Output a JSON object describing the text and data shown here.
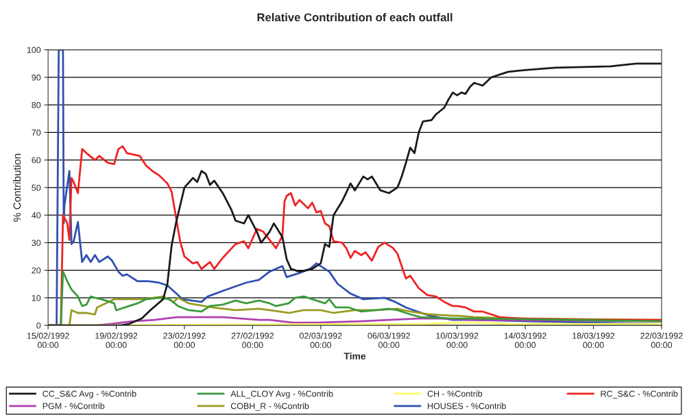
{
  "chart_data": {
    "type": "line",
    "title": "Relative Contribution of each outfall",
    "xlabel": "Time",
    "ylabel": "% Contribution",
    "xlim": [
      "1992-02-15T00:00",
      "1992-03-22T00:00"
    ],
    "xticks": [
      {
        "value": "1992-02-15T00:00",
        "label": "15/02/1992\n00:00"
      },
      {
        "value": "1992-02-19T00:00",
        "label": "19/02/1992\n00:00"
      },
      {
        "value": "1992-02-23T00:00",
        "label": "23/02/1992\n00:00"
      },
      {
        "value": "1992-02-27T00:00",
        "label": "27/02/1992\n00:00"
      },
      {
        "value": "1992-03-02T00:00",
        "label": "02/03/1992\n00:00"
      },
      {
        "value": "1992-03-06T00:00",
        "label": "06/03/1992\n00:00"
      },
      {
        "value": "1992-03-10T00:00",
        "label": "10/03/1992\n00:00"
      },
      {
        "value": "1992-03-14T00:00",
        "label": "14/03/1992\n00:00"
      },
      {
        "value": "1992-03-18T00:00",
        "label": "18/03/1992\n00:00"
      },
      {
        "value": "1992-03-22T00:00",
        "label": "22/03/1992\n00:00"
      }
    ],
    "ylim": [
      0,
      100
    ],
    "yticks": [
      0,
      10,
      20,
      30,
      40,
      50,
      60,
      70,
      80,
      90,
      100
    ],
    "grid": "y",
    "legend": "bottom",
    "marker": "none",
    "line_style": "solid",
    "series": [
      {
        "name": "CC_S&C Avg - %Contrib",
        "color": "#1a1a1a",
        "x": [
          "1992-02-15T00:00",
          "1992-02-19T06:00",
          "1992-02-19T18:00",
          "1992-02-20T12:00",
          "1992-02-21T00:00",
          "1992-02-21T18:00",
          "1992-02-22T00:00",
          "1992-02-22T06:00",
          "1992-02-22T12:00",
          "1992-02-23T00:00",
          "1992-02-23T12:00",
          "1992-02-23T18:00",
          "1992-02-24T00:00",
          "1992-02-24T06:00",
          "1992-02-24T12:00",
          "1992-02-24T18:00",
          "1992-02-25T06:00",
          "1992-02-25T18:00",
          "1992-02-26T00:00",
          "1992-02-26T12:00",
          "1992-02-26T18:00",
          "1992-02-27T06:00",
          "1992-02-27T12:00",
          "1992-02-28T00:00",
          "1992-02-28T06:00",
          "1992-02-28T18:00",
          "1992-02-29T00:00",
          "1992-02-29T06:00",
          "1992-02-29T18:00",
          "1992-03-01T12:00",
          "1992-03-02T00:00",
          "1992-03-02T06:00",
          "1992-03-02T12:00",
          "1992-03-02T18:00",
          "1992-03-03T06:00",
          "1992-03-03T18:00",
          "1992-03-04T00:00",
          "1992-03-04T06:00",
          "1992-03-04T12:00",
          "1992-03-04T18:00",
          "1992-03-05T00:00",
          "1992-03-05T12:00",
          "1992-03-06T00:00",
          "1992-03-06T12:00",
          "1992-03-06T18:00",
          "1992-03-07T00:00",
          "1992-03-07T06:00",
          "1992-03-07T12:00",
          "1992-03-07T18:00",
          "1992-03-08T00:00",
          "1992-03-08T12:00",
          "1992-03-08T18:00",
          "1992-03-09T06:00",
          "1992-03-09T12:00",
          "1992-03-09T18:00",
          "1992-03-10T00:00",
          "1992-03-10T06:00",
          "1992-03-10T12:00",
          "1992-03-10T18:00",
          "1992-03-11T00:00",
          "1992-03-11T12:00",
          "1992-03-12T00:00",
          "1992-03-12T12:00",
          "1992-03-13T00:00",
          "1992-03-13T18:00",
          "1992-03-15T18:00",
          "1992-03-19T00:00",
          "1992-03-20T12:00",
          "1992-03-22T00:00"
        ],
        "values": [
          0,
          0,
          0.5,
          2.5,
          5.5,
          9.5,
          15,
          29,
          37,
          50,
          53.5,
          52,
          56,
          55,
          51,
          52.5,
          48,
          42,
          38,
          37,
          40,
          34,
          30,
          34,
          37,
          32,
          24,
          20.5,
          19.5,
          20.5,
          22.5,
          29.5,
          28.5,
          40,
          45,
          51.5,
          49,
          51.5,
          54,
          53,
          54,
          49,
          48,
          50,
          54,
          59,
          64.5,
          62.5,
          70,
          74,
          74.5,
          76.5,
          79,
          82,
          84.5,
          83.5,
          84.5,
          84,
          86.5,
          88,
          87,
          90,
          91,
          92,
          92.5,
          93.5,
          94,
          95,
          95
        ]
      },
      {
        "name": "ALL_CLOY Avg - %Contrib",
        "color": "#3a9a3a",
        "x": [
          "1992-02-15T00:00",
          "1992-02-15T18:00",
          "1992-02-15T21:00",
          "1992-02-16T03:00",
          "1992-02-16T09:00",
          "1992-02-16T18:00",
          "1992-02-17T00:00",
          "1992-02-17T06:00",
          "1992-02-17T12:00",
          "1992-02-17T18:00",
          "1992-02-18T03:00",
          "1992-02-18T15:00",
          "1992-02-18T21:00",
          "1992-02-19T00:00",
          "1992-02-19T18:00",
          "1992-02-20T06:00",
          "1992-02-20T18:00",
          "1992-02-21T12:00",
          "1992-02-22T03:00",
          "1992-02-22T15:00",
          "1992-02-23T06:00",
          "1992-02-24T00:00",
          "1992-02-24T12:00",
          "1992-02-25T06:00",
          "1992-02-26T00:00",
          "1992-02-26T15:00",
          "1992-02-27T09:00",
          "1992-02-28T00:00",
          "1992-02-28T09:00",
          "1992-02-29T03:00",
          "1992-02-29T12:00",
          "1992-03-01T00:00",
          "1992-03-01T12:00",
          "1992-03-02T06:00",
          "1992-03-02T12:00",
          "1992-03-02T21:00",
          "1992-03-03T15:00",
          "1992-03-04T09:00",
          "1992-03-05T06:00",
          "1992-03-06T00:00",
          "1992-03-06T12:00",
          "1992-03-07T06:00",
          "1992-03-07T21:00",
          "1992-03-09T18:00",
          "1992-03-11T00:00",
          "1992-03-22T00:00"
        ],
        "values": [
          0,
          0,
          19.5,
          16,
          13,
          10.5,
          7,
          7.5,
          10.5,
          10,
          9.5,
          8.5,
          8,
          5.5,
          7,
          8,
          9.5,
          10,
          9.5,
          7,
          5.5,
          5,
          7,
          7.5,
          9,
          8,
          9,
          8,
          7,
          8,
          10,
          10.5,
          9.5,
          8,
          9.5,
          6.5,
          6.5,
          5,
          5.5,
          6,
          5.5,
          4,
          3,
          2.5,
          2.5,
          1.5
        ]
      },
      {
        "name": "CH - %Contrib",
        "color": "#ffff66",
        "x": [
          "1992-02-15T00:00",
          "1992-03-08T00:00",
          "1992-03-10T00:00",
          "1992-03-11T12:00",
          "1992-03-13T00:00",
          "1992-03-22T00:00"
        ],
        "values": [
          0,
          0.5,
          1,
          1,
          0.5,
          0.5
        ]
      },
      {
        "name": "RC_S&C - %Contrib",
        "color": "#ee2222",
        "x": [
          "1992-02-15T00:00",
          "1992-02-15T18:00",
          "1992-02-15T21:00",
          "1992-02-16T03:00",
          "1992-02-16T06:00",
          "1992-02-16T09:00",
          "1992-02-16T12:00",
          "1992-02-16T18:00",
          "1992-02-17T00:00",
          "1992-02-17T06:00",
          "1992-02-17T18:00",
          "1992-02-18T00:00",
          "1992-02-18T12:00",
          "1992-02-18T21:00",
          "1992-02-19T03:00",
          "1992-02-19T09:00",
          "1992-02-19T15:00",
          "1992-02-20T09:00",
          "1992-02-20T18:00",
          "1992-02-21T03:00",
          "1992-02-21T12:00",
          "1992-02-22T00:00",
          "1992-02-22T06:00",
          "1992-02-22T12:00",
          "1992-02-22T18:00",
          "1992-02-23T00:00",
          "1992-02-23T12:00",
          "1992-02-23T18:00",
          "1992-02-24T00:00",
          "1992-02-24T12:00",
          "1992-02-24T18:00",
          "1992-02-25T06:00",
          "1992-02-26T00:00",
          "1992-02-26T12:00",
          "1992-02-26T18:00",
          "1992-02-27T06:00",
          "1992-02-27T15:00",
          "1992-02-28T00:00",
          "1992-02-28T09:00",
          "1992-02-28T18:00",
          "1992-02-28T21:00",
          "1992-02-29T00:00",
          "1992-02-29T06:00",
          "1992-02-29T12:00",
          "1992-02-29T18:00",
          "1992-03-01T06:00",
          "1992-03-01T12:00",
          "1992-03-01T18:00",
          "1992-03-02T00:00",
          "1992-03-02T06:00",
          "1992-03-02T12:00",
          "1992-03-02T18:00",
          "1992-03-03T06:00",
          "1992-03-03T12:00",
          "1992-03-03T18:00",
          "1992-03-04T00:00",
          "1992-03-04T09:00",
          "1992-03-04T15:00",
          "1992-03-05T00:00",
          "1992-03-05T09:00",
          "1992-03-05T18:00",
          "1992-03-06T06:00",
          "1992-03-06T12:00",
          "1992-03-07T00:00",
          "1992-03-07T06:00",
          "1992-03-07T18:00",
          "1992-03-08T06:00",
          "1992-03-08T18:00",
          "1992-03-09T06:00",
          "1992-03-09T18:00",
          "1992-03-10T00:00",
          "1992-03-10T12:00",
          "1992-03-11T00:00",
          "1992-03-11T12:00",
          "1992-03-12T00:00",
          "1992-03-12T12:00",
          "1992-03-13T18:00",
          "1992-03-17T18:00",
          "1992-03-22T00:00"
        ],
        "values": [
          0,
          0,
          40,
          37,
          31,
          53.5,
          52,
          48,
          64,
          62.5,
          60,
          61.5,
          59,
          58.5,
          64,
          65,
          62.5,
          61.5,
          58,
          56,
          54.5,
          51.5,
          48.5,
          39.5,
          30.5,
          25,
          22.5,
          23,
          20.5,
          23,
          20.5,
          24.5,
          29.5,
          30.5,
          28,
          35,
          34,
          31,
          28,
          32.5,
          45,
          47,
          48,
          43.5,
          45.5,
          42.5,
          44.5,
          41,
          41.5,
          37,
          36,
          30.5,
          30,
          28,
          24.5,
          27,
          25.5,
          26.5,
          23.5,
          28.5,
          30,
          28,
          26,
          17,
          18,
          13.5,
          11,
          10.5,
          8.5,
          7,
          7,
          6.5,
          5,
          5,
          4,
          3,
          2.5,
          2,
          2
        ]
      },
      {
        "name": "PGM - %Contrib",
        "color": "#b040b0",
        "x": [
          "1992-02-15T00:00",
          "1992-02-17T18:00",
          "1992-02-18T15:00",
          "1992-02-20T00:00",
          "1992-02-21T06:00",
          "1992-02-22T15:00",
          "1992-02-24T00:00",
          "1992-02-25T06:00",
          "1992-02-27T09:00",
          "1992-02-28T00:00",
          "1992-02-29T09:00",
          "1992-03-01T18:00",
          "1992-03-04T09:00",
          "1992-03-06T00:00",
          "1992-03-07T18:00",
          "1992-03-09T00:00",
          "1992-03-11T00:00",
          "1992-03-22T00:00"
        ],
        "values": [
          0,
          0,
          0.5,
          1.5,
          2,
          3,
          3,
          3,
          2,
          2,
          1,
          1,
          1.5,
          2,
          2.5,
          2.5,
          2,
          1.5
        ]
      },
      {
        "name": "COBH_R - %Contrib",
        "color": "#9a9a20",
        "x": [
          "1992-02-15T00:00",
          "1992-02-16T06:00",
          "1992-02-16T09:00",
          "1992-02-16T18:00",
          "1992-02-17T06:00",
          "1992-02-17T18:00",
          "1992-02-17T21:00",
          "1992-02-18T09:00",
          "1992-02-18T21:00",
          "1992-02-20T00:00",
          "1992-02-20T15:00",
          "1992-02-21T18:00",
          "1992-02-22T09:00",
          "1992-02-22T15:00",
          "1992-02-23T06:00",
          "1992-02-24T15:00",
          "1992-02-26T00:00",
          "1992-02-27T09:00",
          "1992-02-28T00:00",
          "1992-02-29T03:00",
          "1992-03-01T00:00",
          "1992-03-02T00:00",
          "1992-03-02T18:00",
          "1992-03-04T00:00",
          "1992-03-05T06:00",
          "1992-03-06T12:00",
          "1992-03-07T06:00",
          "1992-03-08T09:00",
          "1992-03-09T18:00",
          "1992-03-10T03:00",
          "1992-03-11T00:00",
          "1992-03-13T18:00",
          "1992-03-22T00:00"
        ],
        "values": [
          0,
          0,
          5.5,
          4.5,
          4.5,
          4,
          6.5,
          8,
          9.5,
          9.5,
          9.5,
          10.5,
          8.5,
          10,
          8,
          6.5,
          5.5,
          6,
          5.5,
          4.5,
          5.5,
          5.5,
          4.5,
          5.5,
          5.5,
          6,
          5,
          4,
          3.5,
          3.5,
          3,
          2.5,
          2
        ]
      },
      {
        "name": "HOUSES - %Contrib",
        "color": "#3050b0",
        "x": [
          "1992-02-15T00:00",
          "1992-02-15T12:00",
          "1992-02-15T15:00",
          "1992-02-15T21:00",
          "1992-02-15T22:00",
          "1992-02-15T23:00",
          "1992-02-16T06:00",
          "1992-02-16T09:00",
          "1992-02-16T12:00",
          "1992-02-16T18:00",
          "1992-02-17T00:00",
          "1992-02-17T06:00",
          "1992-02-17T12:00",
          "1992-02-17T18:00",
          "1992-02-18T00:00",
          "1992-02-18T12:00",
          "1992-02-18T18:00",
          "1992-02-19T03:00",
          "1992-02-19T09:00",
          "1992-02-19T15:00",
          "1992-02-20T06:00",
          "1992-02-20T21:00",
          "1992-02-21T12:00",
          "1992-02-22T00:00",
          "1992-02-22T15:00",
          "1992-02-22T21:00",
          "1992-02-24T00:00",
          "1992-02-24T09:00",
          "1992-02-25T06:00",
          "1992-02-26T15:00",
          "1992-02-27T09:00",
          "1992-02-28T00:00",
          "1992-02-28T18:00",
          "1992-02-29T00:00",
          "1992-02-29T18:00",
          "1992-03-01T09:00",
          "1992-03-01T18:00",
          "1992-03-02T12:00",
          "1992-03-03T00:00",
          "1992-03-03T18:00",
          "1992-03-04T12:00",
          "1992-03-05T18:00",
          "1992-03-06T09:00",
          "1992-03-07T00:00",
          "1992-03-08T09:00",
          "1992-03-09T18:00",
          "1992-03-11T00:00",
          "1992-03-17T18:00",
          "1992-03-22T00:00"
        ],
        "values": [
          0,
          0,
          100,
          100,
          37,
          43.5,
          56,
          29.5,
          30.5,
          37.5,
          23,
          25.5,
          23,
          25.5,
          23,
          25,
          23.5,
          19.5,
          18,
          18.5,
          16,
          16,
          15.5,
          14.5,
          11,
          9.5,
          8.5,
          10.5,
          12.5,
          15.5,
          16.5,
          19.5,
          21.5,
          17.5,
          19,
          20.5,
          22.5,
          19.5,
          15,
          11.5,
          9.5,
          10,
          8.5,
          6.5,
          3.5,
          2,
          2,
          1,
          0.5
        ]
      }
    ]
  }
}
